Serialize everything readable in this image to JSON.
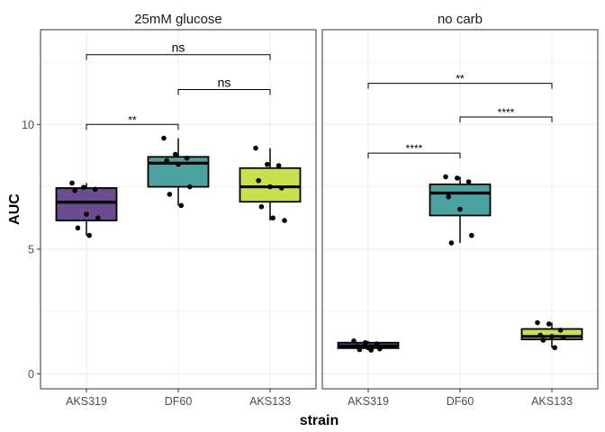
{
  "chart_data": {
    "type": "box",
    "xlabel": "strain",
    "ylabel": "AUC",
    "ylim": [
      -0.6,
      13.8
    ],
    "yticks": [
      0,
      5,
      10
    ],
    "grid": true,
    "categories": [
      "AKS319",
      "DF60",
      "AKS133"
    ],
    "colors": {
      "AKS319": "#6b4c8f",
      "DF60": "#4aa3a1",
      "AKS133": "#c8e04d"
    },
    "panels": [
      {
        "title": "25mM glucose",
        "boxes": [
          {
            "category": "AKS319",
            "q1": 6.15,
            "median": 6.88,
            "q3": 7.45,
            "whisker_low": 5.55,
            "whisker_high": 7.65,
            "points": [
              7.65,
              7.48,
              7.4,
              7.35,
              6.4,
              6.25,
              5.85,
              5.55
            ]
          },
          {
            "category": "DF60",
            "q1": 7.5,
            "median": 8.45,
            "q3": 8.7,
            "whisker_low": 6.75,
            "whisker_high": 9.45,
            "points": [
              9.45,
              8.8,
              8.65,
              8.55,
              8.4,
              7.5,
              7.2,
              6.75
            ]
          },
          {
            "category": "AKS133",
            "q1": 6.9,
            "median": 7.5,
            "q3": 8.25,
            "whisker_low": 6.15,
            "whisker_high": 9.05,
            "points": [
              9.05,
              8.4,
              8.35,
              7.75,
              7.5,
              7.45,
              6.7,
              6.25,
              6.15
            ]
          }
        ],
        "comparisons": [
          {
            "from": "AKS319",
            "to": "DF60",
            "y": 10.0,
            "label": "**"
          },
          {
            "from": "DF60",
            "to": "AKS133",
            "y": 11.4,
            "label": "ns"
          },
          {
            "from": "AKS319",
            "to": "AKS133",
            "y": 12.8,
            "label": "ns"
          }
        ]
      },
      {
        "title": "no carb",
        "boxes": [
          {
            "category": "AKS319",
            "q1": 1.03,
            "median": 1.12,
            "q3": 1.25,
            "whisker_low": 0.95,
            "whisker_high": 1.32,
            "points": [
              1.32,
              1.25,
              1.2,
              1.1,
              1.05,
              1.0,
              0.97,
              0.95
            ]
          },
          {
            "category": "DF60",
            "q1": 6.35,
            "median": 7.25,
            "q3": 7.6,
            "whisker_low": 5.25,
            "whisker_high": 7.9,
            "points": [
              7.9,
              7.85,
              7.7,
              7.1,
              6.6,
              5.55,
              5.25
            ]
          },
          {
            "category": "AKS133",
            "q1": 1.38,
            "median": 1.5,
            "q3": 1.8,
            "whisker_low": 1.05,
            "whisker_high": 2.05,
            "points": [
              2.05,
              2.0,
              1.75,
              1.55,
              1.5,
              1.45,
              1.35,
              1.05
            ]
          }
        ],
        "comparisons": [
          {
            "from": "AKS319",
            "to": "DF60",
            "y": 8.85,
            "label": "****"
          },
          {
            "from": "DF60",
            "to": "AKS133",
            "y": 10.3,
            "label": "****"
          },
          {
            "from": "AKS319",
            "to": "AKS133",
            "y": 11.65,
            "label": "**"
          }
        ]
      }
    ]
  }
}
